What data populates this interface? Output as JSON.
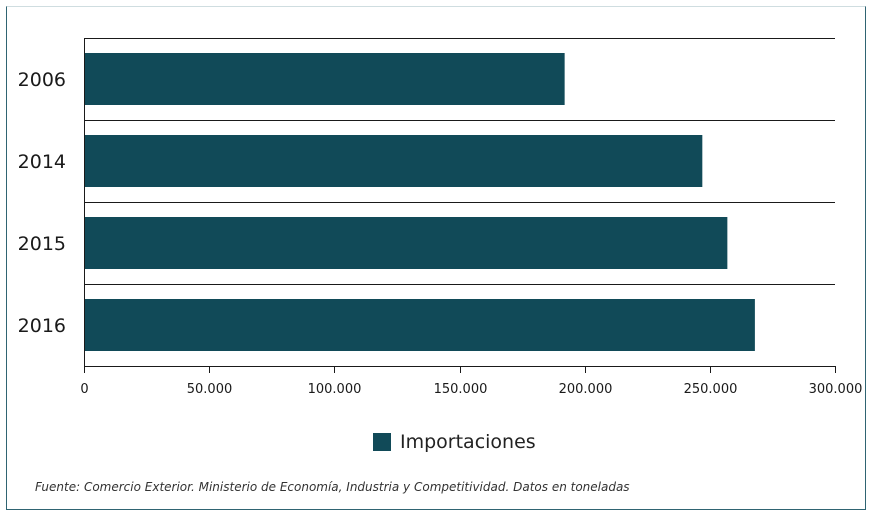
{
  "chart_data": {
    "type": "bar",
    "orientation": "horizontal",
    "categories": [
      "2006",
      "2014",
      "2015",
      "2016"
    ],
    "series": [
      {
        "name": "Importaciones",
        "values": [
          192000,
          247000,
          257000,
          268000
        ]
      }
    ],
    "xlim": [
      0,
      300000
    ],
    "xticks": [
      0,
      50000,
      100000,
      150000,
      200000,
      250000,
      300000
    ],
    "xtick_labels": [
      "0",
      "50.000",
      "100.000",
      "150.000",
      "200.000",
      "250.000",
      "300.000"
    ],
    "grid": "horizontal separators between categories",
    "legend_position": "bottom-center",
    "colors": {
      "bar": "#114a58",
      "axis": "#1a1a1a",
      "frame": "#2f6472"
    }
  },
  "legend": {
    "label": "Importaciones"
  },
  "source": "Fuente: Comercio Exterior. Ministerio de Economía, Industria y Competitividad. Datos en toneladas"
}
